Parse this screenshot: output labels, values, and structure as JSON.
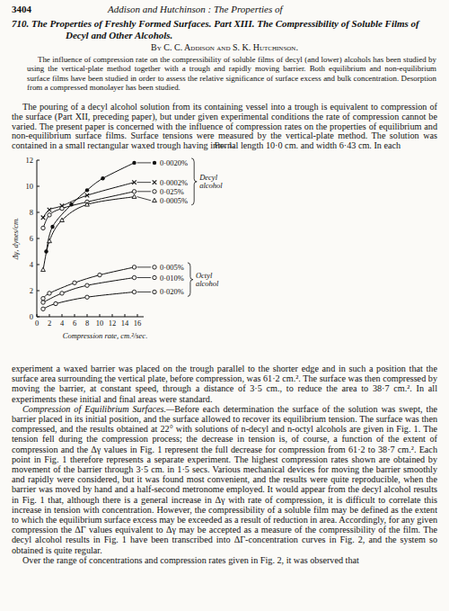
{
  "header": {
    "page_number": "3404",
    "running_title": "Addison and Hutchinson : The Properties of"
  },
  "title": "710. The Properties of Freshly Formed Surfaces. Part XIII. The Compressibility of Soluble Films of Decyl and Other Alcohols.",
  "authors": "By C. C. Addison and S. K. Hutchinson.",
  "abstract": "The influence of compression rate on the compressibility of soluble films of decyl (and lower) alcohols has been studied by using the vertical-plate method together with a trough and rapidly moving barrier. Both equilibrium and non-equilibrium surface films have been studied in order to assess the relative significance of surface excess and bulk concentration. Desorption from a compressed monolayer has been studied.",
  "body_before": [
    {
      "indent": true,
      "text": "The pouring of a decyl alcohol solution from its containing vessel into a trough is equivalent to compression of the surface (Part XII, preceding paper), but under given experimental conditions the rate of compression cannot be varied. The present paper is concerned with the influence of compression rates on the properties of equilibrium and non-equilibrium surface films. Surface tensions were measured by the vertical-plate method. The solution was contained in a small rectangular waxed trough having internal length 10·0 cm. and width 6·43 cm. In each"
    }
  ],
  "figure_caption": "Fig. 1.",
  "chart_data": {
    "type": "line",
    "xlabel": "Compression rate, cm.²/sec.",
    "ylabel": "Δγ, dynes/cm.",
    "xlim": [
      0,
      17
    ],
    "ylim": [
      0,
      12
    ],
    "xticks": [
      0,
      2,
      4,
      6,
      8,
      10,
      12,
      14,
      16
    ],
    "yticks": [
      0,
      2,
      4,
      6,
      8,
      10,
      12
    ],
    "grid": false,
    "series": [
      {
        "name": "0·0020%",
        "color": "#111111",
        "marker": "dot",
        "x": [
          1.5,
          2.5,
          5.5,
          8,
          10.5,
          15.5
        ],
        "values": [
          5.0,
          6.9,
          8.6,
          9.7,
          10.6,
          11.8
        ]
      },
      {
        "name": "0·0002%",
        "color": "#111111",
        "marker": "cross",
        "x": [
          1,
          2,
          4,
          8,
          15.5
        ],
        "values": [
          7.6,
          8.2,
          8.5,
          9.3,
          10.3
        ]
      },
      {
        "name": "0·025%",
        "color": "#111111",
        "marker": "circle",
        "x": [
          1,
          2,
          4,
          8,
          15.5
        ],
        "values": [
          6.8,
          7.8,
          8.3,
          8.8,
          9.6
        ]
      },
      {
        "name": "0·0005%",
        "color": "#111111",
        "marker": "triangle",
        "x": [
          1,
          2,
          4,
          8,
          15.5
        ],
        "values": [
          3.6,
          5.8,
          7.4,
          8.6,
          9.2
        ]
      },
      {
        "name": "0·005%",
        "color": "#111111",
        "marker": "circle",
        "x": [
          1,
          2,
          6,
          10,
          15.5
        ],
        "values": [
          1.4,
          1.8,
          2.6,
          3.2,
          3.8
        ]
      },
      {
        "name": "0·010%",
        "color": "#111111",
        "marker": "circle",
        "x": [
          1,
          4,
          8,
          15.5
        ],
        "values": [
          1.1,
          1.8,
          2.4,
          3.0
        ]
      },
      {
        "name": "0·020%",
        "color": "#111111",
        "marker": "circle",
        "x": [
          1,
          3,
          8,
          15.5
        ],
        "values": [
          0.6,
          1.0,
          1.5,
          1.9
        ]
      }
    ],
    "annotations": [
      {
        "text": "Decyl alcohol",
        "series": [
          0,
          1,
          2,
          3
        ]
      },
      {
        "text": "Octyl alcohol",
        "series": [
          4,
          5,
          6
        ]
      }
    ]
  },
  "body_after": [
    {
      "indent": false,
      "text": "experiment a waxed barrier was placed on the trough parallel to the shorter edge and in such a position that the surface area surrounding the vertical plate, before compression, was 61·2 cm.². The surface was then compressed by moving the barrier, at constant speed, through a distance of 3·5 cm., to reduce the area to 38·7 cm.². In all experiments these initial and final areas were standard."
    },
    {
      "indent": true,
      "heading": "Compression of Equilibrium Surfaces.—",
      "text": "Before each determination the surface of the solution was swept, the barrier placed in its initial position, and the surface allowed to recover its equilibrium tension. The surface was then compressed, and the results obtained at 22° with solutions of n-decyl and n-octyl alcohols are given in Fig. 1. The tension fell during the compression process; the decrease in tension is, of course, a function of the extent of compression and the Δγ values in Fig. 1 represent the full decrease for compression from 61·2 to 38·7 cm.². Each point in Fig. 1 therefore represents a separate experiment. The highest compression rates shown are obtained by movement of the barrier through 3·5 cm. in 1·5 secs. Various mechanical devices for moving the barrier smoothly and rapidly were considered, but it was found most convenient, and the results were quite reproducible, when the barrier was moved by hand and a half-second metronome employed. It would appear from the decyl alcohol results in Fig. 1 that, although there is a general increase in Δγ with rate of compression, it is difficult to correlate this increase in tension with concentration. However, the compressibility of a soluble film may be defined as the extent to which the equilibrium surface excess may be exceeded as a result of reduction in area. Accordingly, for any given compression the ΔΓ values equivalent to Δγ may be accepted as a measure of the compressibility of the film. The decyl alcohol results in Fig. 1 have been transcribed into ΔΓ-concentration curves in Fig. 2, and the system so obtained is quite regular."
    },
    {
      "indent": true,
      "text": "Over the range of concentrations and compression rates given in Fig. 2, it was observed that"
    }
  ]
}
